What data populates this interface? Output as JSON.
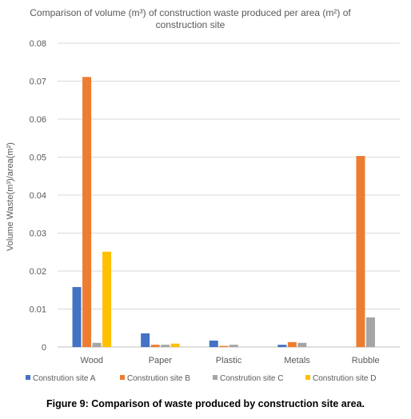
{
  "chart_data": {
    "type": "bar",
    "title": "Comparison of volume (m³) of construction waste produced per area (m²) of construction site",
    "title_lines": [
      "Comparison of volume (m³) of construction waste produced per area (m²) of",
      "construction site"
    ],
    "xlabel": "",
    "ylabel": "Volume Waste(m³)/area(m²)",
    "ylim": [
      0,
      0.08
    ],
    "yticks": [
      "0",
      "0.01",
      "0.02",
      "0.03",
      "0.04",
      "0.05",
      "0.06",
      "0.07",
      "0.08"
    ],
    "categories": [
      "Wood",
      "Paper",
      "Plastic",
      "Metals",
      "Rubble"
    ],
    "grid": "horizontal",
    "legend_position": "bottom",
    "series": [
      {
        "name": "Constrution site A",
        "color": "#4472C4",
        "values": [
          0.0158,
          0.0036,
          0.0017,
          0.0006,
          0
        ]
      },
      {
        "name": "Constrution site B",
        "color": "#ED7D31",
        "values": [
          0.0711,
          0.0006,
          0.0003,
          0.0013,
          0.0503
        ]
      },
      {
        "name": "Constrution site C",
        "color": "#A5A5A5",
        "values": [
          0.0011,
          0.0006,
          0.0006,
          0.0011,
          0.0078
        ]
      },
      {
        "name": "Constrution site D",
        "color": "#FFC000",
        "values": [
          0.0251,
          0.0009,
          0,
          0,
          0
        ]
      }
    ]
  },
  "caption": "Figure 9: Comparison of waste produced by construction site area."
}
